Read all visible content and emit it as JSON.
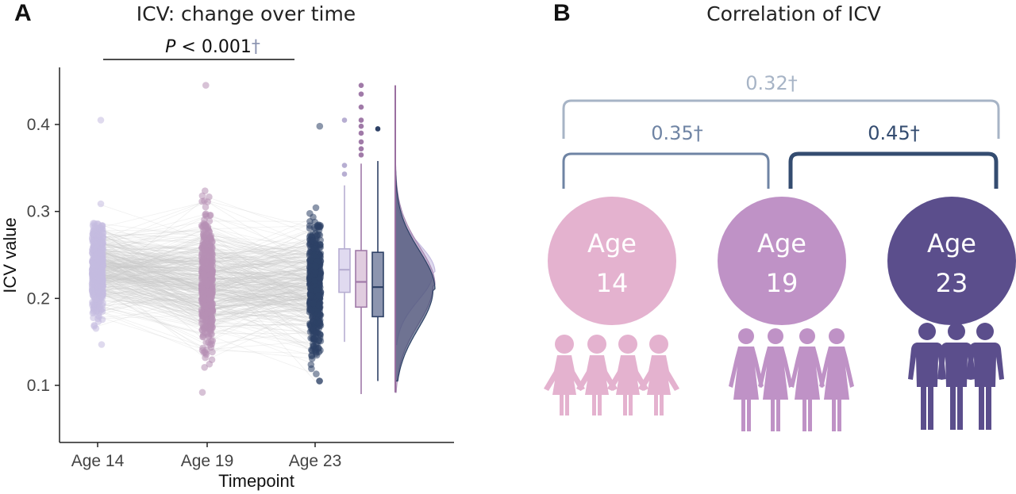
{
  "panel_a": {
    "label": "A",
    "title": "ICV: change over time",
    "significance": {
      "p_italic": "P",
      "p_text": " < 0.001",
      "dagger": "†"
    },
    "xlabel": "Timepoint",
    "ylabel": "ICV value"
  },
  "chart_data": {
    "type": "raincloud",
    "title": "ICV: change over time",
    "xlabel": "Timepoint",
    "ylabel": "ICV value",
    "categories": [
      "Age 14",
      "Age 19",
      "Age 23"
    ],
    "yticks": [
      "0.1",
      "0.2",
      "0.3",
      "0.4"
    ],
    "ylim": [
      0.08,
      0.47
    ],
    "grid": false,
    "colors": [
      "#c4bbe0",
      "#b68fb4",
      "#2e4166"
    ],
    "distribution_ranges": [
      {
        "category": "Age 14",
        "min": 0.147,
        "max": 0.405
      },
      {
        "category": "Age 19",
        "min": 0.092,
        "max": 0.445
      },
      {
        "category": "Age 23",
        "min": 0.105,
        "max": 0.398
      }
    ],
    "boxplots": [
      {
        "category": "Age 14",
        "q1": 0.207,
        "median": 0.233,
        "q3": 0.257,
        "whisker_low": 0.15,
        "whisker_high": 0.33,
        "outliers": [
          0.343,
          0.353,
          0.405
        ]
      },
      {
        "category": "Age 19",
        "q1": 0.19,
        "median": 0.219,
        "q3": 0.255,
        "whisker_low": 0.09,
        "whisker_high": 0.355,
        "outliers": [
          0.365,
          0.372,
          0.38,
          0.39,
          0.398,
          0.405,
          0.42,
          0.435,
          0.445
        ]
      },
      {
        "category": "Age 23",
        "q1": 0.179,
        "median": 0.213,
        "q3": 0.253,
        "whisker_low": 0.105,
        "whisker_high": 0.358,
        "outliers": [
          0.395
        ]
      }
    ],
    "density_peaks": [
      0.23,
      0.215,
      0.21
    ],
    "significance": {
      "from": "Age 14",
      "to": "Age 23",
      "label": "P < 0.001†"
    }
  },
  "panel_b": {
    "label": "B",
    "title": "Correlation of ICV",
    "correlations": [
      {
        "value": "0.32†",
        "pair": "Age 14 – Age 23",
        "color": "#a7b4c6"
      },
      {
        "value": "0.35†",
        "pair": "Age 14 – Age 19",
        "color": "#6f84a4"
      },
      {
        "value": "0.45†",
        "pair": "Age 19 – Age 23",
        "color": "#344c70"
      }
    ],
    "circles": [
      {
        "line1": "Age",
        "line2": "14",
        "color": "#e4b2cf"
      },
      {
        "line1": "Age",
        "line2": "19",
        "color": "#bf92c6"
      },
      {
        "line1": "Age",
        "line2": "23",
        "color": "#5b4e8c"
      }
    ],
    "people_icons": [
      "girl-group-icon",
      "woman-group-icon",
      "man-group-icon"
    ]
  }
}
